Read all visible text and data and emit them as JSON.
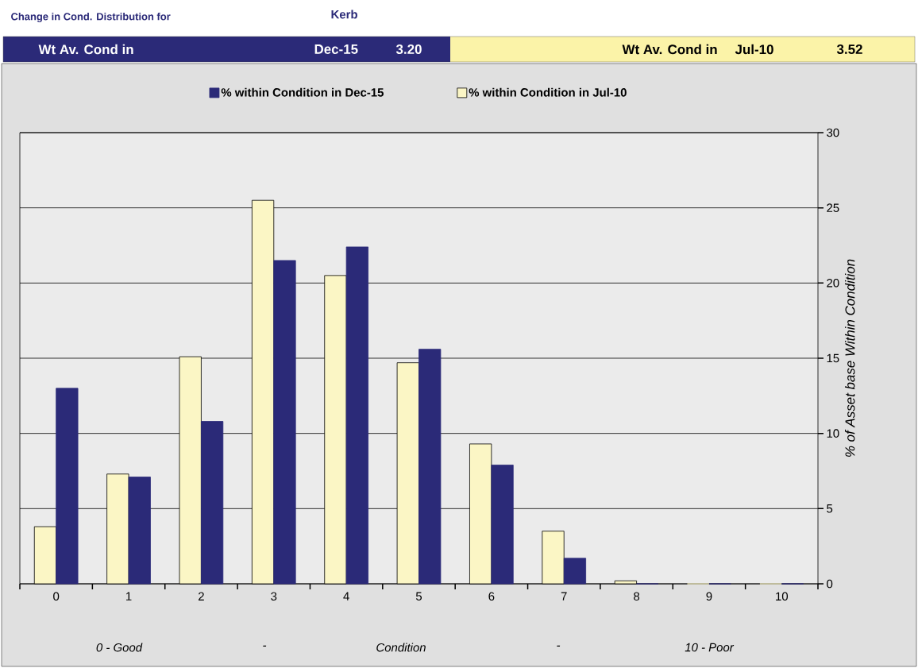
{
  "chart_data": {
    "type": "bar",
    "title": "Change in Cond. Distribution for",
    "subtitle": "Kerb",
    "xlabel": "Condition",
    "ylabel": "% of Asset base Within Condition",
    "annotations": [
      "Wt Av. Cond in",
      "Dec-15",
      "3.20",
      "Wt Av. Cond in",
      "Jul-10",
      "3.52",
      "0 - Good",
      "-",
      "-",
      "10 - Poor"
    ],
    "categories": [
      "0",
      "1",
      "2",
      "3",
      "4",
      "5",
      "6",
      "7",
      "8",
      "9",
      "10"
    ],
    "series": [
      {
        "name": "% within Condition in Jul-10",
        "color": "#fbf6c5",
        "values": [
          3.8,
          7.3,
          15.1,
          25.5,
          20.5,
          14.7,
          9.3,
          3.5,
          0.2,
          0,
          0
        ]
      },
      {
        "name": "% within Condition in Dec-15",
        "color": "#2b2a78",
        "values": [
          13.0,
          7.1,
          10.8,
          21.5,
          22.4,
          15.6,
          7.9,
          1.7,
          0,
          0,
          0
        ]
      }
    ],
    "ylim": [
      0,
      30
    ],
    "yticks": [
      0,
      5,
      10,
      15,
      20,
      25,
      30
    ],
    "grid": "y",
    "legend": "top"
  }
}
